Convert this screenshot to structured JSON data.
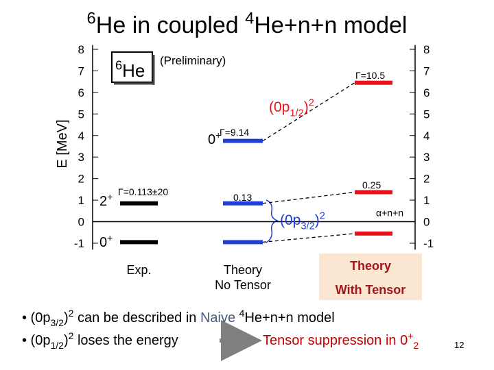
{
  "chart_data": {
    "type": "level",
    "title": [
      {
        "text": "6",
        "sup": true
      },
      {
        "text": "He in coupled "
      },
      {
        "text": "4",
        "sup": true
      },
      {
        "text": "He+n+n model"
      }
    ],
    "y_label": "E [MeV]",
    "ylim": [
      -1.3,
      8.2
    ],
    "yticks": [
      -1,
      0,
      1,
      2,
      3,
      4,
      5,
      6,
      7,
      8
    ],
    "threshold": {
      "label": "α+n+n",
      "value": 0
    },
    "columns": [
      {
        "name": [
          "Exp."
        ],
        "color": "#000000",
        "values": [
          -0.95,
          0.85
        ]
      },
      {
        "name": [
          "Theory",
          "No Tensor"
        ],
        "color": "#1f3fd6",
        "values": [
          -0.95,
          0.85,
          3.75
        ]
      },
      {
        "name": [
          "Theory",
          "With Tensor"
        ],
        "color": "#e8141c",
        "values": [
          -0.55,
          1.37,
          6.45
        ],
        "highlight": true
      }
    ],
    "annotations": [
      [
        {
          "text": "0"
        },
        {
          "text": "+",
          "sup": true
        }
      ],
      [
        {
          "text": "2"
        },
        {
          "text": "+",
          "sup": true
        }
      ],
      [
        {
          "text": "Γ=0.113±20"
        }
      ],
      [
        {
          "text": "0.13"
        }
      ],
      [
        {
          "text": "0"
        },
        {
          "text": "+",
          "sup": true
        }
      ],
      [
        {
          "text": "Γ=9.14"
        }
      ],
      [
        {
          "text": "0.25"
        }
      ],
      [
        {
          "text": "Γ=10.5"
        }
      ],
      [
        {
          "text": "(Preliminary)"
        }
      ],
      [
        {
          "text": "6",
          "sup": true
        },
        {
          "text": "He"
        }
      ],
      [
        {
          "text": "(0p",
          "color": "#e8141c"
        },
        {
          "text": "1/2",
          "sub": true,
          "color": "#e8141c"
        },
        {
          "text": ")",
          "color": "#e8141c"
        },
        {
          "text": "2",
          "sup": true,
          "color": "#e8141c"
        }
      ],
      [
        {
          "text": "(0p",
          "color": "#1f3fd6"
        },
        {
          "text": "3/2",
          "sub": true,
          "color": "#1f3fd6"
        },
        {
          "text": ")",
          "color": "#1f3fd6"
        },
        {
          "text": "2",
          "sup": true,
          "color": "#1f3fd6"
        }
      ]
    ],
    "bullets": [
      [
        {
          "text": "• (0p"
        },
        {
          "text": "3/2",
          "sub": true
        },
        {
          "text": ")"
        },
        {
          "text": "2",
          "sup": true
        },
        {
          "text": " can be described in "
        },
        {
          "text": "Naive",
          "color": "#4a5a7a"
        },
        {
          "text": " "
        },
        {
          "text": "4",
          "sup": true
        },
        {
          "text": "He+n+n model"
        }
      ],
      [
        {
          "text": "• (0p"
        },
        {
          "text": "1/2",
          "sub": true
        },
        {
          "text": ")"
        },
        {
          "text": "2",
          "sup": true
        },
        {
          "text": " loses the energy"
        }
      ]
    ],
    "note": [
      {
        "text": "Tensor suppression in 0",
        "color": "#c00000"
      },
      {
        "text": "+",
        "sup": true,
        "color": "#c00000"
      },
      {
        "text": "2",
        "sub": true,
        "color": "#c00000"
      }
    ],
    "page_number": "12"
  }
}
